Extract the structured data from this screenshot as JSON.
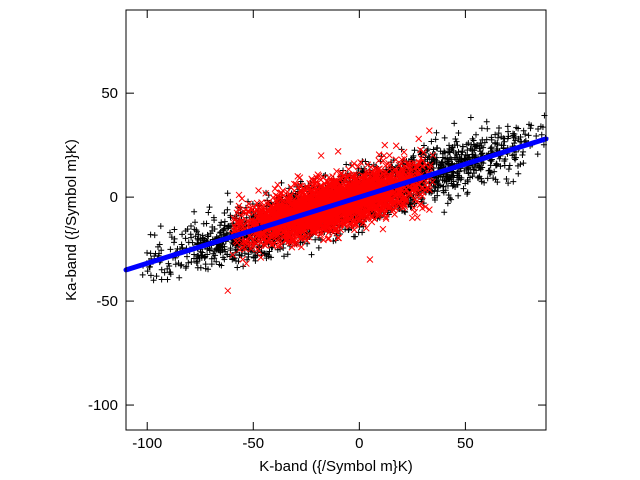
{
  "chart_data": {
    "type": "scatter",
    "title": "",
    "xlabel": "K-band ({/Symbol m}K)",
    "ylabel": "Ka-band ({/Symbol m}K)",
    "xlim": [
      -110,
      88
    ],
    "ylim": [
      -112,
      90
    ],
    "xticks": [
      -100,
      -50,
      0,
      50
    ],
    "yticks": [
      -100,
      -50,
      0,
      50
    ],
    "grid": false,
    "legend": "none",
    "series": [
      {
        "marker": "plus",
        "color": "#000000",
        "approx_count": 2500,
        "description": "full-sky pixel cloud",
        "x_range": [
          -103,
          88
        ],
        "y_range": [
          -40,
          40
        ],
        "trend_slope": 0.32,
        "trend_intercept": 0,
        "spread_sd": 6.5,
        "sample_points": [
          [
            -97,
            -40
          ],
          [
            -90,
            -32
          ],
          [
            -80,
            -26
          ],
          [
            -75,
            -20
          ],
          [
            -68,
            -28
          ],
          [
            -62,
            -15
          ],
          [
            -55,
            -18
          ],
          [
            -50,
            -10
          ],
          [
            -45,
            -22
          ],
          [
            -40,
            -8
          ],
          [
            40,
            12
          ],
          [
            45,
            25
          ],
          [
            50,
            18
          ],
          [
            55,
            30
          ],
          [
            60,
            20
          ],
          [
            65,
            26
          ],
          [
            70,
            34
          ],
          [
            75,
            28
          ],
          [
            80,
            35
          ],
          [
            86,
            30
          ]
        ]
      },
      {
        "marker": "x",
        "color": "#ff0000",
        "approx_count": 2500,
        "description": "masked-sky pixel cloud",
        "x_range": [
          -60,
          35
        ],
        "y_range": [
          -45,
          32
        ],
        "trend_slope": 0.28,
        "trend_intercept": 0,
        "spread_sd": 6,
        "sample_points": [
          [
            -62,
            -45
          ],
          [
            -55,
            -30
          ],
          [
            -48,
            -25
          ],
          [
            -40,
            -20
          ],
          [
            -30,
            -15
          ],
          [
            -22,
            8
          ],
          [
            -18,
            20
          ],
          [
            -10,
            22
          ],
          [
            0,
            5
          ],
          [
            12,
            25
          ],
          [
            20,
            18
          ],
          [
            28,
            28
          ],
          [
            33,
            32
          ],
          [
            25,
            -10
          ],
          [
            5,
            -30
          ]
        ]
      },
      {
        "marker": "line",
        "color": "#0000ff",
        "description": "linear fit",
        "x": [
          -110,
          88
        ],
        "y": [
          -35,
          28
        ]
      }
    ]
  }
}
